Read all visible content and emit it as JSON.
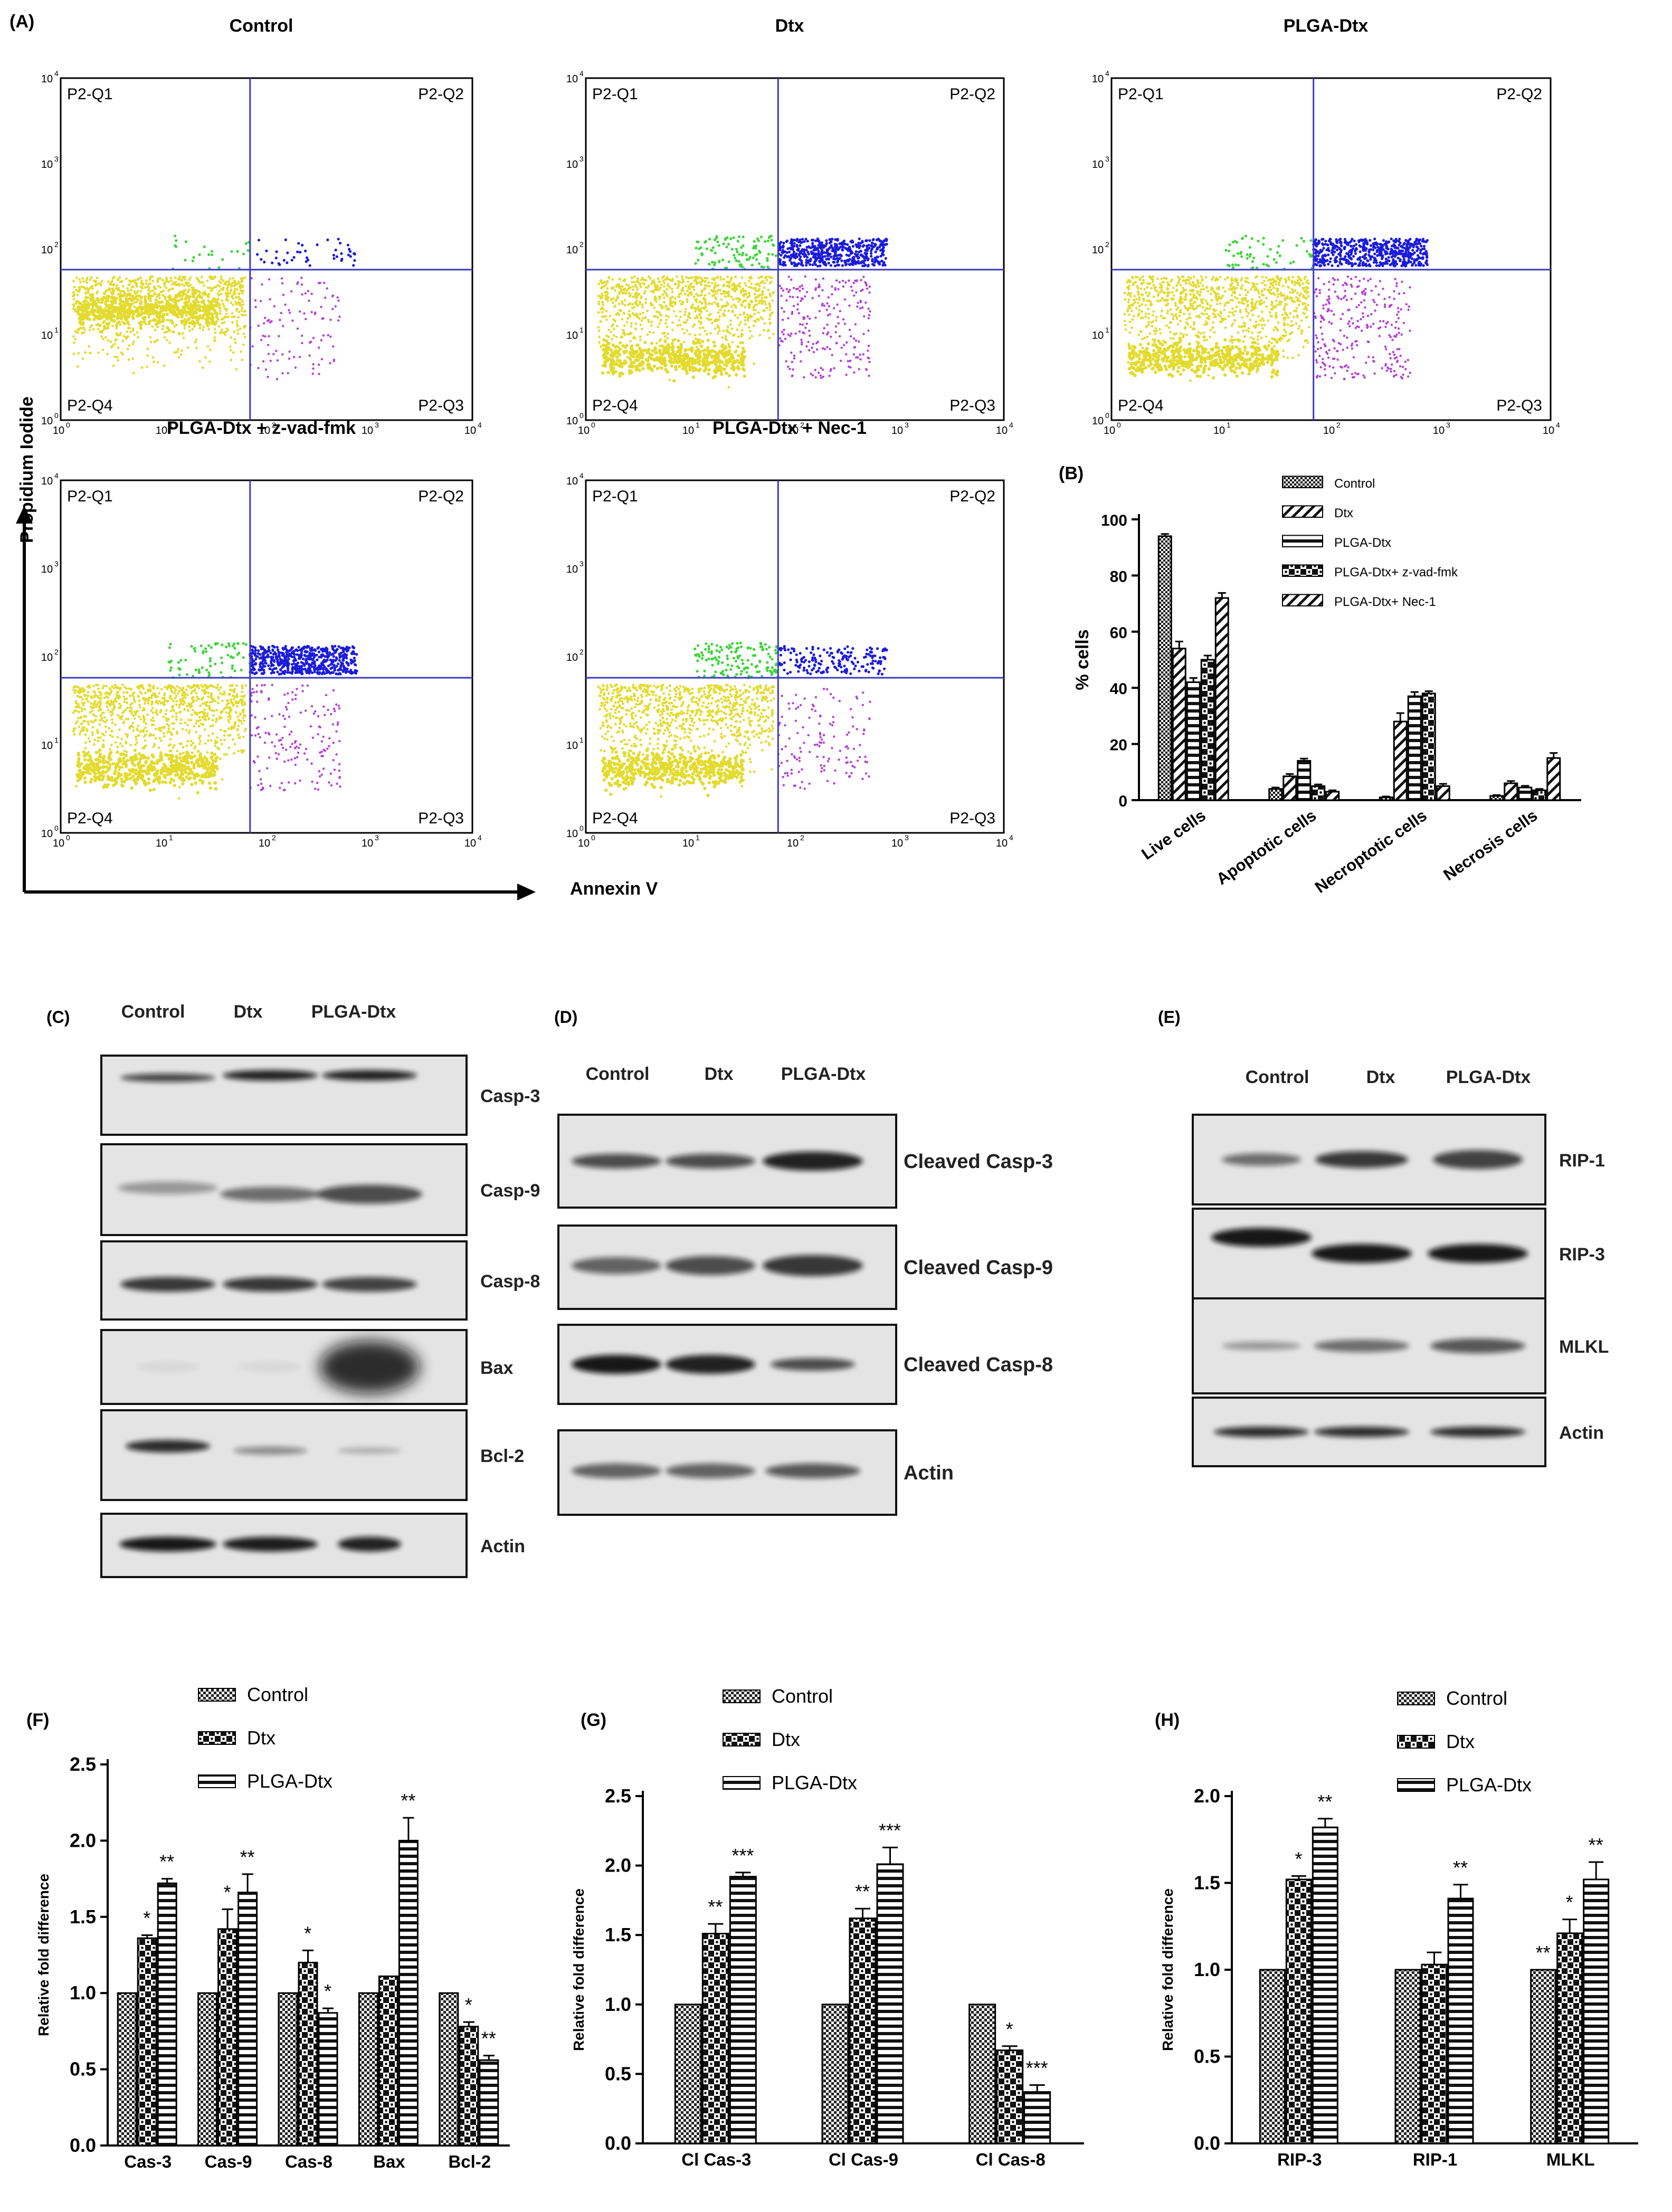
{
  "panels": {
    "A": {
      "label": "(A)",
      "y_axis_label": "Propidium Iodide",
      "x_axis_label": "Annexin V",
      "quadrant_labels": [
        "P2-Q1",
        "P2-Q2",
        "P2-Q3",
        "P2-Q4"
      ],
      "ticks": [
        "10",
        "10",
        "10",
        "10",
        "10"
      ],
      "tick_exponents": [
        "0",
        "1",
        "2",
        "3",
        "4"
      ],
      "plots": [
        {
          "title": "Control"
        },
        {
          "title": "Dtx"
        },
        {
          "title": "PLGA-Dtx"
        },
        {
          "title": "PLGA-Dtx  + z-vad-fmk"
        },
        {
          "title": "PLGA-Dtx  + Nec-1"
        }
      ],
      "colors": {
        "live": "#e3db2e",
        "early": "#b43fd6",
        "late": "#1b1bdb",
        "necrotic": "#3ed53a",
        "gate": "#3a3ac8"
      }
    },
    "C": {
      "label": "(C)",
      "lanes": [
        "Control",
        "Dtx",
        "PLGA-Dtx"
      ],
      "blots": [
        "Casp-3",
        "Casp-9",
        "Casp-8",
        "Bax",
        "Bcl-2",
        "Actin"
      ]
    },
    "D": {
      "label": "(D)",
      "lanes": [
        "Control",
        "Dtx",
        "PLGA-Dtx"
      ],
      "blots": [
        "Cleaved Casp-3",
        "Cleaved Casp-9",
        "Cleaved Casp-8",
        "Actin"
      ]
    },
    "E": {
      "label": "(E)",
      "lanes": [
        "Control",
        "Dtx",
        "PLGA-Dtx"
      ],
      "blots": [
        "RIP-1",
        "RIP-3",
        "MLKL",
        "Actin"
      ]
    }
  },
  "chart_data": [
    {
      "id": "B",
      "panel_label": "(B)",
      "type": "bar",
      "ylabel": "% cells",
      "xlabel": "",
      "ylim": [
        0,
        100
      ],
      "yticks": [
        "0",
        "20",
        "40",
        "60",
        "80",
        "100"
      ],
      "categories": [
        "Live cells",
        "Apoptotic cells",
        "Necroptotic cells",
        "Necrosis cells"
      ],
      "series": [
        {
          "name": "Control",
          "values": [
            94,
            4,
            1,
            1.5
          ]
        },
        {
          "name": "Dtx",
          "values": [
            54,
            8.5,
            28,
            6
          ]
        },
        {
          "name": "PLGA-Dtx",
          "values": [
            42,
            14,
            37,
            4.5
          ]
        },
        {
          "name": "PLGA-Dtx+ z-vad-fmk",
          "values": [
            50,
            5,
            38,
            3.5
          ]
        },
        {
          "name": "PLGA-Dtx+ Nec-1",
          "values": [
            72,
            3,
            5,
            15
          ]
        }
      ],
      "errors": [
        [
          0.8,
          0.5,
          0.3,
          0.3
        ],
        [
          2.5,
          0.8,
          3,
          0.8
        ],
        [
          1.5,
          0.8,
          1.5,
          0.6
        ],
        [
          1.5,
          0.6,
          0.8,
          0.5
        ],
        [
          1.8,
          0.5,
          0.8,
          1.8
        ]
      ],
      "legend": "top-right"
    },
    {
      "id": "F",
      "panel_label": "(F)",
      "type": "bar",
      "ylabel": "Relative fold difference",
      "xlabel": "",
      "ylim": [
        0,
        2.5
      ],
      "yticks": [
        "0.0",
        "0.5",
        "1.0",
        "1.5",
        "2.0",
        "2.5"
      ],
      "categories": [
        "Cas-3",
        "Cas-9",
        "Cas-8",
        "Bax",
        "Bcl-2"
      ],
      "series": [
        {
          "name": "Control",
          "values": [
            1.0,
            1.0,
            1.0,
            1.0,
            1.0
          ]
        },
        {
          "name": "Dtx",
          "values": [
            1.36,
            1.42,
            1.2,
            1.11,
            0.78
          ]
        },
        {
          "name": "PLGA-Dtx",
          "values": [
            1.72,
            1.66,
            0.87,
            2.0,
            0.56
          ]
        }
      ],
      "errors": [
        [
          0,
          0,
          0,
          0,
          0
        ],
        [
          0.02,
          0.13,
          0.08,
          0,
          0.03
        ],
        [
          0.03,
          0.12,
          0.03,
          0.15,
          0.03
        ]
      ],
      "significance": [
        [
          "",
          "",
          "",
          "",
          ""
        ],
        [
          "*",
          "*",
          "*",
          "",
          "*"
        ],
        [
          "**",
          "**",
          "*",
          "**",
          "**"
        ]
      ],
      "legend": "top-left"
    },
    {
      "id": "G",
      "panel_label": "(G)",
      "type": "bar",
      "ylabel": "Relative fold difference",
      "xlabel": "",
      "ylim": [
        0,
        2.5
      ],
      "yticks": [
        "0.0",
        "0.5",
        "1.0",
        "1.5",
        "2.0",
        "2.5"
      ],
      "categories": [
        "Cl Cas-3",
        "Cl Cas-9",
        "Cl Cas-8"
      ],
      "series": [
        {
          "name": "Control",
          "values": [
            1.0,
            1.0,
            1.0
          ]
        },
        {
          "name": "Dtx",
          "values": [
            1.51,
            1.62,
            0.67
          ]
        },
        {
          "name": "PLGA-Dtx",
          "values": [
            1.92,
            2.01,
            0.37
          ]
        }
      ],
      "errors": [
        [
          0,
          0,
          0
        ],
        [
          0.07,
          0.07,
          0.03
        ],
        [
          0.03,
          0.12,
          0.05
        ]
      ],
      "significance": [
        [
          "",
          "",
          ""
        ],
        [
          "**",
          "**",
          "*"
        ],
        [
          "***",
          "***",
          "***"
        ]
      ],
      "legend": "top-left"
    },
    {
      "id": "H",
      "panel_label": "(H)",
      "type": "bar",
      "ylabel": "Relative fold difference",
      "xlabel": "",
      "ylim": [
        0,
        2.0
      ],
      "yticks": [
        "0.0",
        "0.5",
        "1.0",
        "1.5",
        "2.0"
      ],
      "categories": [
        "RIP-3",
        "RIP-1",
        "MLKL"
      ],
      "series": [
        {
          "name": "Control",
          "values": [
            1.0,
            1.0,
            1.0
          ]
        },
        {
          "name": "Dtx",
          "values": [
            1.52,
            1.03,
            1.21
          ]
        },
        {
          "name": "PLGA-Dtx",
          "values": [
            1.82,
            1.41,
            1.52
          ]
        }
      ],
      "errors": [
        [
          0,
          0,
          0
        ],
        [
          0.02,
          0.07,
          0.08
        ],
        [
          0.05,
          0.08,
          0.1
        ]
      ],
      "significance": [
        [
          "",
          "",
          "**"
        ],
        [
          "*",
          "",
          "*"
        ],
        [
          "**",
          "**",
          "**"
        ]
      ],
      "legend": "top-left"
    }
  ]
}
